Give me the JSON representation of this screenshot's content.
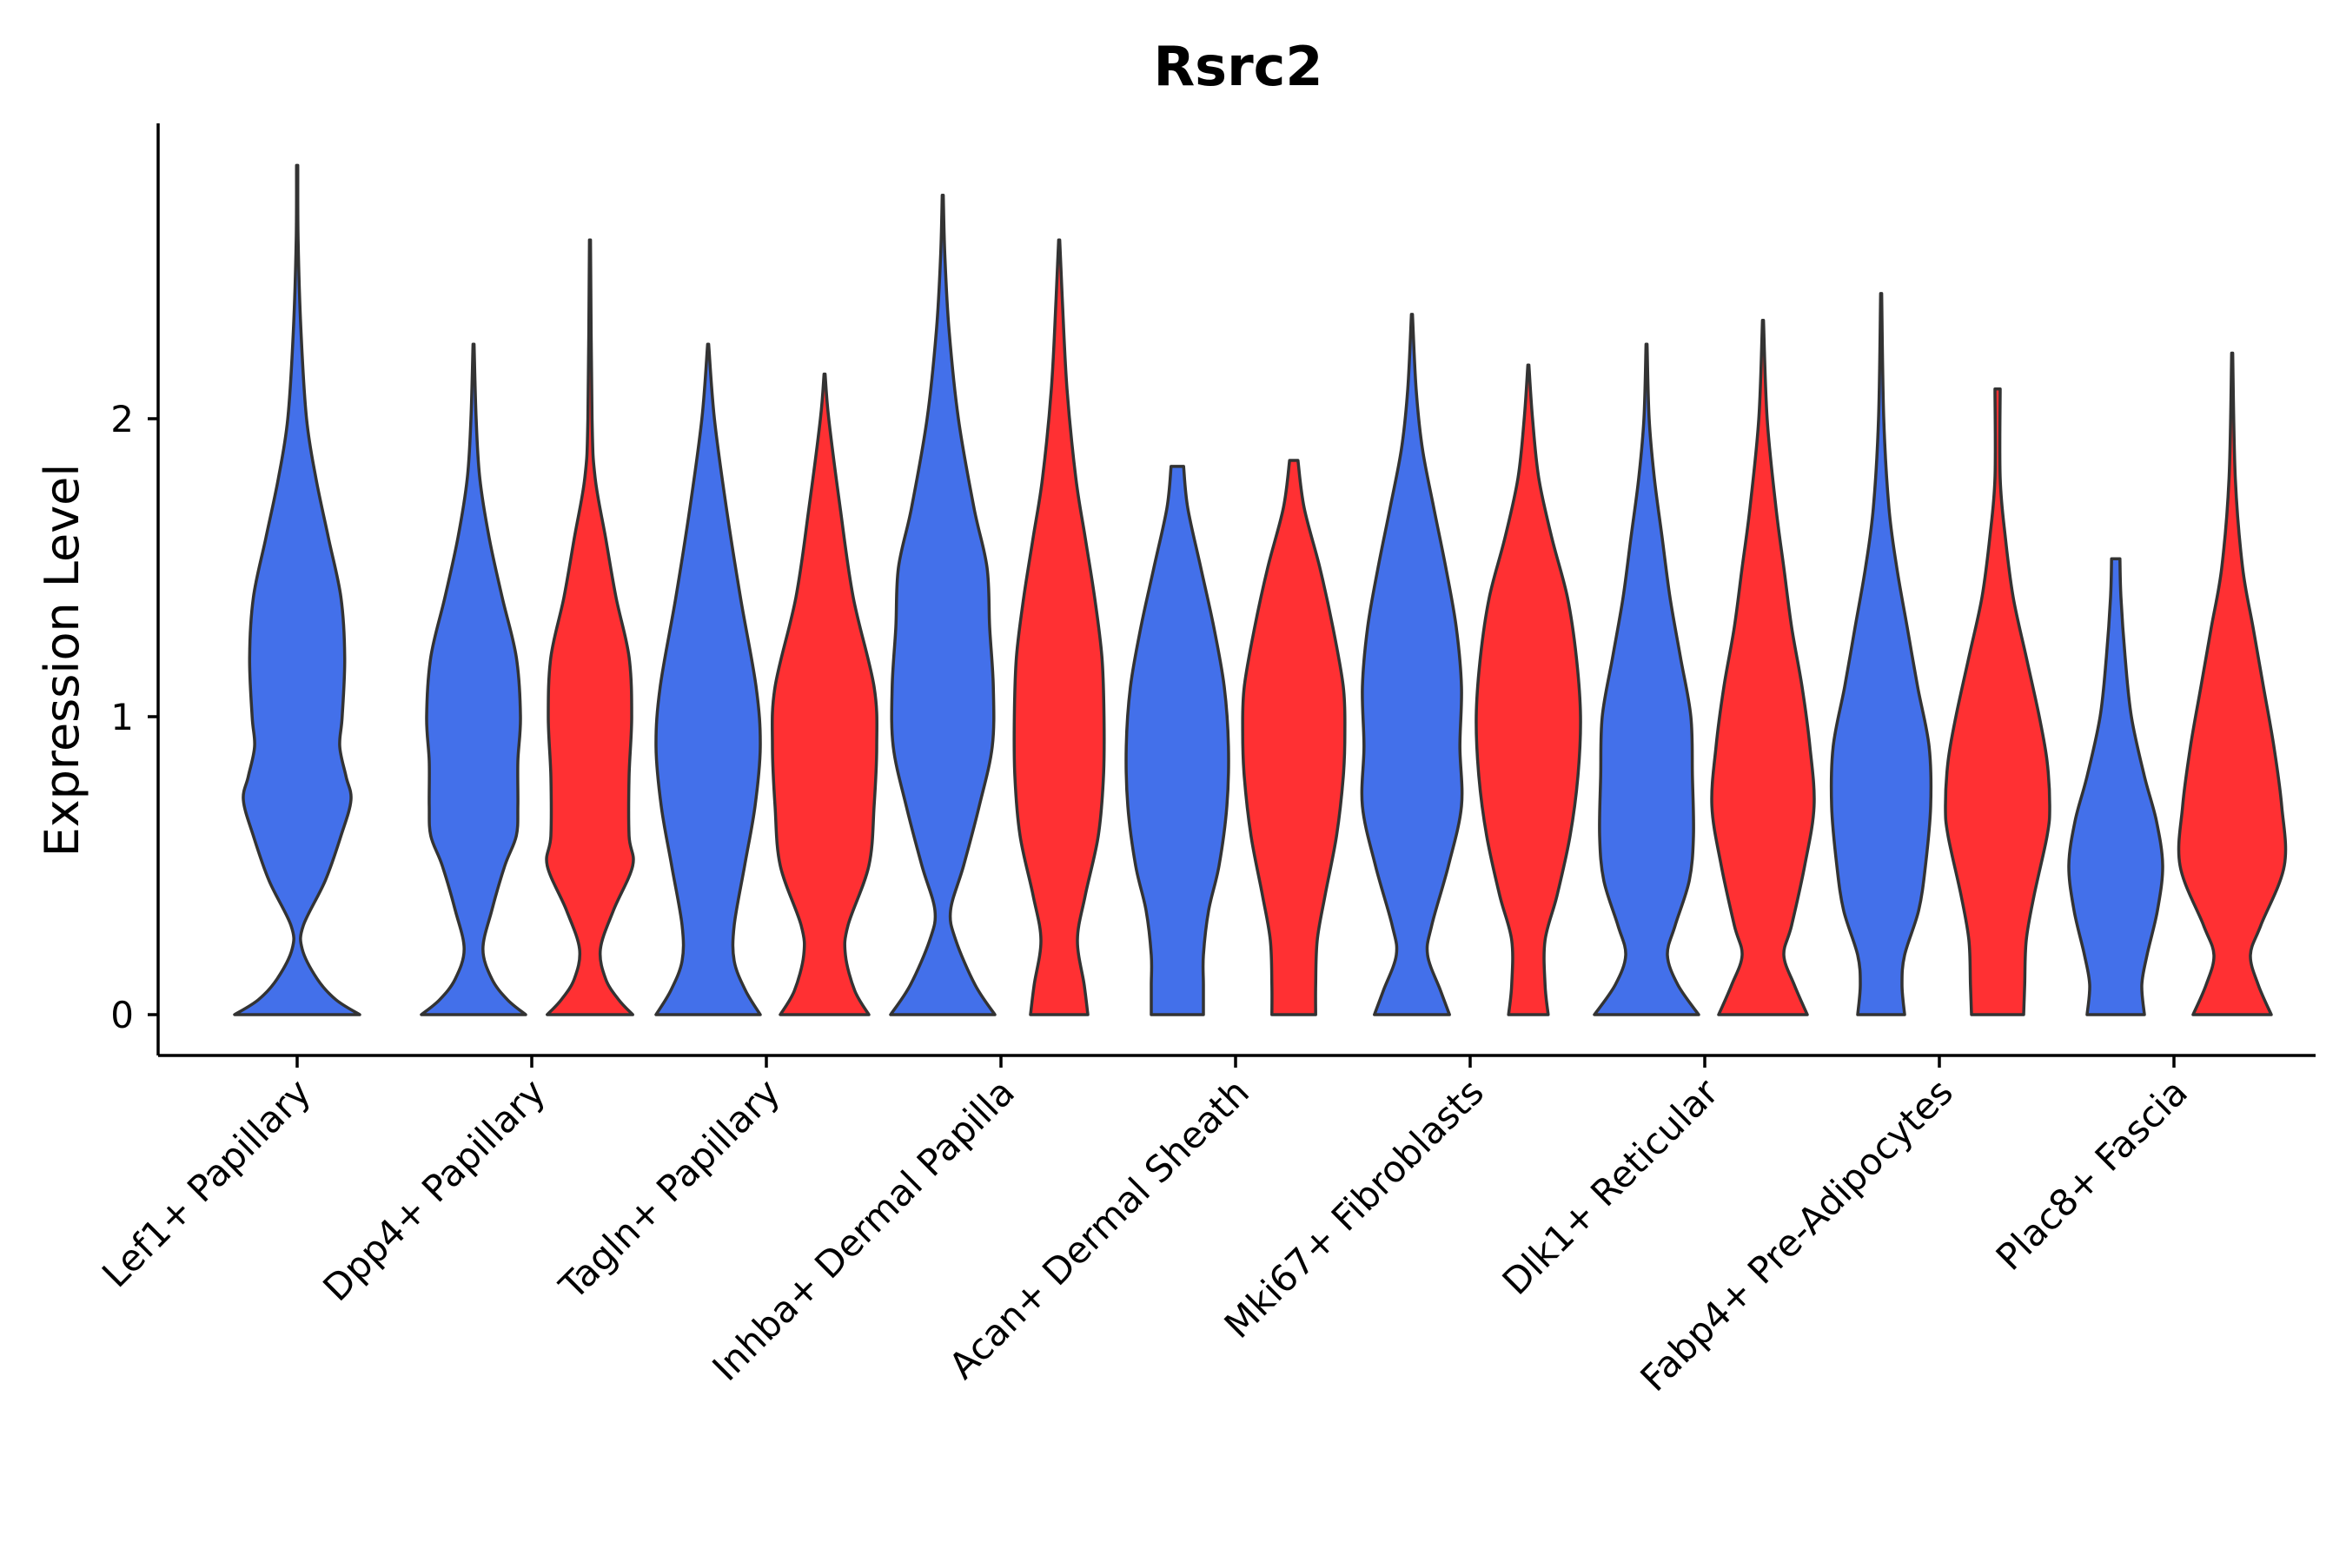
{
  "chart_data": {
    "type": "violin",
    "title": "Rsrc2",
    "xlabel": "",
    "ylabel": "Expression Level",
    "ylim": [
      -0.15,
      3.0
    ],
    "yticks": [
      0,
      1,
      2
    ],
    "grid": false,
    "legend": "none",
    "series_colors": [
      "#4370EA",
      "#FF3033"
    ],
    "categories": [
      "Lef1+ Papillary",
      "Dpp4+ Papillary",
      "Tagln+ Papillary",
      "Inhba+ Dermal Papilla",
      "Acan+ Dermal Sheath",
      "Mki67+ Fibroblasts",
      "Dlk1+ Reticular",
      "Fabp4+ Pre-Adipocytes",
      "Plac8+ Fascia"
    ],
    "violins": [
      {
        "category": "Lef1+ Papillary",
        "series": 0,
        "max": 2.85,
        "profile": [
          [
            0,
            1.0
          ],
          [
            0.05,
            0.62
          ],
          [
            0.12,
            0.32
          ],
          [
            0.22,
            0.08
          ],
          [
            0.3,
            0.1
          ],
          [
            0.45,
            0.45
          ],
          [
            0.6,
            0.7
          ],
          [
            0.72,
            0.86
          ],
          [
            0.8,
            0.78
          ],
          [
            0.9,
            0.68
          ],
          [
            1.0,
            0.72
          ],
          [
            1.2,
            0.76
          ],
          [
            1.4,
            0.7
          ],
          [
            1.6,
            0.5
          ],
          [
            1.8,
            0.3
          ],
          [
            2.0,
            0.15
          ],
          [
            2.3,
            0.06
          ],
          [
            2.6,
            0.015
          ],
          [
            2.85,
            0.01
          ]
        ]
      },
      {
        "category": "Dpp4+ Papillary",
        "series": 0,
        "max": 2.25,
        "profile": [
          [
            0,
            1.0
          ],
          [
            0.05,
            0.65
          ],
          [
            0.12,
            0.35
          ],
          [
            0.22,
            0.18
          ],
          [
            0.35,
            0.35
          ],
          [
            0.5,
            0.6
          ],
          [
            0.6,
            0.82
          ],
          [
            0.7,
            0.85
          ],
          [
            0.85,
            0.85
          ],
          [
            1.0,
            0.9
          ],
          [
            1.2,
            0.82
          ],
          [
            1.4,
            0.55
          ],
          [
            1.6,
            0.3
          ],
          [
            1.8,
            0.12
          ],
          [
            2.0,
            0.05
          ],
          [
            2.25,
            0.01
          ]
        ]
      },
      {
        "category": "Dpp4+ Papillary",
        "series": 1,
        "max": 2.6,
        "profile": [
          [
            0,
            0.82
          ],
          [
            0.05,
            0.55
          ],
          [
            0.12,
            0.3
          ],
          [
            0.22,
            0.2
          ],
          [
            0.35,
            0.45
          ],
          [
            0.5,
            0.82
          ],
          [
            0.6,
            0.75
          ],
          [
            0.8,
            0.75
          ],
          [
            1.0,
            0.8
          ],
          [
            1.2,
            0.75
          ],
          [
            1.4,
            0.5
          ],
          [
            1.6,
            0.3
          ],
          [
            1.8,
            0.1
          ],
          [
            2.0,
            0.04
          ],
          [
            2.6,
            0.01
          ]
        ]
      },
      {
        "category": "Tagln+ Papillary",
        "series": 0,
        "max": 2.25,
        "profile": [
          [
            0,
            1.0
          ],
          [
            0.08,
            0.72
          ],
          [
            0.18,
            0.5
          ],
          [
            0.3,
            0.5
          ],
          [
            0.5,
            0.7
          ],
          [
            0.7,
            0.9
          ],
          [
            0.9,
            1.0
          ],
          [
            1.1,
            0.92
          ],
          [
            1.4,
            0.62
          ],
          [
            1.7,
            0.35
          ],
          [
            2.0,
            0.12
          ],
          [
            2.25,
            0.01
          ]
        ]
      },
      {
        "category": "Tagln+ Papillary",
        "series": 1,
        "max": 2.15,
        "profile": [
          [
            0,
            0.85
          ],
          [
            0.08,
            0.58
          ],
          [
            0.2,
            0.4
          ],
          [
            0.3,
            0.45
          ],
          [
            0.5,
            0.85
          ],
          [
            0.7,
            0.95
          ],
          [
            0.9,
            1.0
          ],
          [
            1.1,
            0.95
          ],
          [
            1.4,
            0.55
          ],
          [
            1.7,
            0.3
          ],
          [
            2.0,
            0.08
          ],
          [
            2.15,
            0.01
          ]
        ]
      },
      {
        "category": "Inhba+ Dermal Papilla",
        "series": 0,
        "max": 2.75,
        "profile": [
          [
            0,
            1.0
          ],
          [
            0.1,
            0.62
          ],
          [
            0.25,
            0.25
          ],
          [
            0.35,
            0.15
          ],
          [
            0.5,
            0.4
          ],
          [
            0.7,
            0.7
          ],
          [
            0.9,
            0.95
          ],
          [
            1.1,
            0.97
          ],
          [
            1.3,
            0.9
          ],
          [
            1.5,
            0.85
          ],
          [
            1.7,
            0.6
          ],
          [
            2.0,
            0.3
          ],
          [
            2.3,
            0.12
          ],
          [
            2.55,
            0.04
          ],
          [
            2.75,
            0.01
          ]
        ]
      },
      {
        "category": "Inhba+ Dermal Papilla",
        "series": 1,
        "max": 2.6,
        "profile": [
          [
            0,
            0.55
          ],
          [
            0.1,
            0.48
          ],
          [
            0.25,
            0.35
          ],
          [
            0.4,
            0.5
          ],
          [
            0.6,
            0.75
          ],
          [
            0.8,
            0.85
          ],
          [
            1.0,
            0.86
          ],
          [
            1.2,
            0.82
          ],
          [
            1.4,
            0.68
          ],
          [
            1.6,
            0.5
          ],
          [
            1.8,
            0.32
          ],
          [
            2.1,
            0.15
          ],
          [
            2.4,
            0.06
          ],
          [
            2.6,
            0.01
          ]
        ]
      },
      {
        "category": "Acan+ Dermal Sheath",
        "series": 0,
        "max": 1.84,
        "profile": [
          [
            0,
            0.5
          ],
          [
            0.1,
            0.5
          ],
          [
            0.2,
            0.5
          ],
          [
            0.35,
            0.6
          ],
          [
            0.5,
            0.8
          ],
          [
            0.7,
            0.95
          ],
          [
            0.9,
            0.98
          ],
          [
            1.1,
            0.9
          ],
          [
            1.3,
            0.7
          ],
          [
            1.5,
            0.45
          ],
          [
            1.7,
            0.2
          ],
          [
            1.84,
            0.12
          ]
        ]
      },
      {
        "category": "Acan+ Dermal Sheath",
        "series": 1,
        "max": 1.86,
        "profile": [
          [
            0,
            0.42
          ],
          [
            0.1,
            0.42
          ],
          [
            0.25,
            0.45
          ],
          [
            0.4,
            0.6
          ],
          [
            0.6,
            0.82
          ],
          [
            0.8,
            0.95
          ],
          [
            0.95,
            0.98
          ],
          [
            1.1,
            0.95
          ],
          [
            1.3,
            0.75
          ],
          [
            1.5,
            0.5
          ],
          [
            1.7,
            0.2
          ],
          [
            1.86,
            0.08
          ]
        ]
      },
      {
        "category": "Mki67+ Fibroblasts",
        "series": 0,
        "max": 2.35,
        "profile": [
          [
            0,
            0.72
          ],
          [
            0.08,
            0.55
          ],
          [
            0.2,
            0.3
          ],
          [
            0.3,
            0.38
          ],
          [
            0.5,
            0.7
          ],
          [
            0.7,
            0.95
          ],
          [
            0.9,
            0.92
          ],
          [
            1.1,
            0.95
          ],
          [
            1.3,
            0.85
          ],
          [
            1.5,
            0.65
          ],
          [
            1.7,
            0.42
          ],
          [
            1.9,
            0.2
          ],
          [
            2.1,
            0.08
          ],
          [
            2.35,
            0.01
          ]
        ]
      },
      {
        "category": "Mki67+ Fibroblasts",
        "series": 1,
        "max": 2.18,
        "profile": [
          [
            0,
            0.38
          ],
          [
            0.1,
            0.32
          ],
          [
            0.25,
            0.32
          ],
          [
            0.4,
            0.55
          ],
          [
            0.6,
            0.8
          ],
          [
            0.8,
            0.95
          ],
          [
            1.0,
            1.0
          ],
          [
            1.2,
            0.92
          ],
          [
            1.4,
            0.75
          ],
          [
            1.6,
            0.45
          ],
          [
            1.8,
            0.2
          ],
          [
            2.0,
            0.08
          ],
          [
            2.18,
            0.01
          ]
        ]
      },
      {
        "category": "Dlk1+ Reticular",
        "series": 0,
        "max": 2.25,
        "profile": [
          [
            0,
            1.0
          ],
          [
            0.1,
            0.6
          ],
          [
            0.2,
            0.4
          ],
          [
            0.3,
            0.55
          ],
          [
            0.45,
            0.82
          ],
          [
            0.6,
            0.9
          ],
          [
            0.8,
            0.88
          ],
          [
            1.0,
            0.85
          ],
          [
            1.2,
            0.65
          ],
          [
            1.4,
            0.45
          ],
          [
            1.6,
            0.3
          ],
          [
            1.8,
            0.15
          ],
          [
            2.0,
            0.05
          ],
          [
            2.25,
            0.01
          ]
        ]
      },
      {
        "category": "Dlk1+ Reticular",
        "series": 1,
        "max": 2.33,
        "profile": [
          [
            0,
            0.85
          ],
          [
            0.1,
            0.6
          ],
          [
            0.2,
            0.4
          ],
          [
            0.3,
            0.55
          ],
          [
            0.5,
            0.8
          ],
          [
            0.7,
            0.98
          ],
          [
            0.9,
            0.9
          ],
          [
            1.1,
            0.75
          ],
          [
            1.3,
            0.55
          ],
          [
            1.5,
            0.4
          ],
          [
            1.7,
            0.25
          ],
          [
            2.0,
            0.08
          ],
          [
            2.33,
            0.01
          ]
        ]
      },
      {
        "category": "Fabp4+ Pre-Adipocytes",
        "series": 0,
        "max": 2.42,
        "profile": [
          [
            0,
            0.45
          ],
          [
            0.1,
            0.4
          ],
          [
            0.2,
            0.45
          ],
          [
            0.35,
            0.72
          ],
          [
            0.5,
            0.85
          ],
          [
            0.7,
            0.95
          ],
          [
            0.9,
            0.92
          ],
          [
            1.1,
            0.7
          ],
          [
            1.3,
            0.5
          ],
          [
            1.5,
            0.3
          ],
          [
            1.7,
            0.15
          ],
          [
            2.0,
            0.05
          ],
          [
            2.42,
            0.01
          ]
        ]
      },
      {
        "category": "Fabp4+ Pre-Adipocytes",
        "series": 1,
        "max": 2.1,
        "profile": [
          [
            0,
            0.5
          ],
          [
            0.1,
            0.52
          ],
          [
            0.25,
            0.55
          ],
          [
            0.4,
            0.7
          ],
          [
            0.6,
            0.95
          ],
          [
            0.7,
            1.0
          ],
          [
            0.85,
            0.95
          ],
          [
            1.0,
            0.8
          ],
          [
            1.2,
            0.55
          ],
          [
            1.4,
            0.3
          ],
          [
            1.6,
            0.15
          ],
          [
            1.8,
            0.05
          ],
          [
            2.1,
            0.05
          ]
        ]
      },
      {
        "category": "Plac8+ Fascia",
        "series": 0,
        "max": 1.53,
        "profile": [
          [
            0,
            0.55
          ],
          [
            0.1,
            0.5
          ],
          [
            0.2,
            0.6
          ],
          [
            0.35,
            0.8
          ],
          [
            0.5,
            0.9
          ],
          [
            0.65,
            0.78
          ],
          [
            0.8,
            0.55
          ],
          [
            1.0,
            0.3
          ],
          [
            1.2,
            0.18
          ],
          [
            1.4,
            0.1
          ],
          [
            1.53,
            0.08
          ]
        ]
      },
      {
        "category": "Plac8+ Fascia",
        "series": 1,
        "max": 2.22,
        "profile": [
          [
            0,
            0.75
          ],
          [
            0.1,
            0.5
          ],
          [
            0.2,
            0.35
          ],
          [
            0.3,
            0.55
          ],
          [
            0.5,
            1.0
          ],
          [
            0.7,
            0.95
          ],
          [
            0.9,
            0.8
          ],
          [
            1.1,
            0.6
          ],
          [
            1.3,
            0.4
          ],
          [
            1.5,
            0.2
          ],
          [
            1.8,
            0.06
          ],
          [
            2.22,
            0.01
          ]
        ]
      }
    ]
  }
}
